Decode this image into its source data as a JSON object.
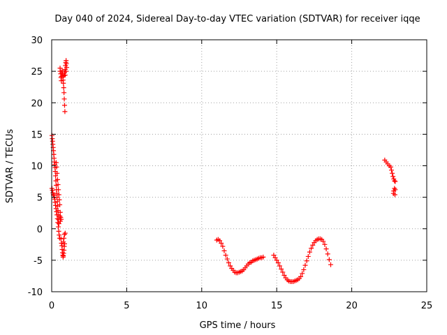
{
  "chart_data": {
    "type": "scatter",
    "title": "Day 040 of 2024, Sidereal Day-to-day VTEC variation (SDTVAR) for receiver iqqe",
    "xlabel": "GPS time / hours",
    "ylabel": "SDTVAR / TECUs",
    "xlim": [
      0,
      25
    ],
    "ylim": [
      -10,
      30
    ],
    "xticks": [
      0,
      5,
      10,
      15,
      20,
      25
    ],
    "yticks": [
      -10,
      -5,
      0,
      5,
      10,
      15,
      20,
      25,
      30
    ],
    "grid": true,
    "marker": "plus",
    "color": "#ff0000",
    "series": [
      {
        "name": "SDTVAR",
        "points": [
          [
            0.02,
            14.8
          ],
          [
            0.04,
            14.3
          ],
          [
            0.06,
            13.9
          ],
          [
            0.08,
            13.4
          ],
          [
            0.1,
            12.9
          ],
          [
            0.12,
            12.4
          ],
          [
            0.14,
            11.8
          ],
          [
            0.16,
            11.2
          ],
          [
            0.18,
            10.6
          ],
          [
            0.2,
            10.2
          ],
          [
            0.22,
            9.7
          ],
          [
            0.24,
            9.1
          ],
          [
            0.26,
            8.4
          ],
          [
            0.28,
            7.6
          ],
          [
            0.3,
            6.9
          ],
          [
            0.32,
            6.2
          ],
          [
            0.34,
            5.6
          ],
          [
            0.36,
            5.0
          ],
          [
            0.38,
            4.3
          ],
          [
            0.4,
            3.6
          ],
          [
            0.42,
            2.9
          ],
          [
            0.44,
            2.2
          ],
          [
            0.46,
            1.5
          ],
          [
            0.48,
            0.8
          ],
          [
            0.02,
            6.4
          ],
          [
            0.05,
            6.1
          ],
          [
            0.08,
            5.7
          ],
          [
            0.11,
            5.4
          ],
          [
            0.14,
            5.3
          ],
          [
            0.17,
            5.0
          ],
          [
            0.2,
            4.7
          ],
          [
            0.23,
            4.2
          ],
          [
            0.26,
            3.7
          ],
          [
            0.29,
            3.2
          ],
          [
            0.32,
            2.7
          ],
          [
            0.35,
            2.2
          ],
          [
            0.38,
            1.6
          ],
          [
            0.41,
            1.0
          ],
          [
            0.44,
            0.3
          ],
          [
            0.47,
            -0.4
          ],
          [
            0.5,
            -1.0
          ],
          [
            0.53,
            -1.5
          ],
          [
            0.3,
            10.5
          ],
          [
            0.33,
            9.8
          ],
          [
            0.36,
            8.8
          ],
          [
            0.39,
            7.8
          ],
          [
            0.42,
            7.0
          ],
          [
            0.45,
            6.2
          ],
          [
            0.48,
            5.4
          ],
          [
            0.51,
            4.6
          ],
          [
            0.54,
            3.8
          ],
          [
            0.57,
            2.6
          ],
          [
            0.6,
            1.8
          ],
          [
            0.63,
            1.5
          ],
          [
            0.55,
            2.0
          ],
          [
            0.58,
            1.2
          ],
          [
            0.62,
            -1.6
          ],
          [
            0.65,
            -2.3
          ],
          [
            0.68,
            -2.7
          ],
          [
            0.7,
            -3.3
          ],
          [
            0.72,
            -3.8
          ],
          [
            0.74,
            -4.2
          ],
          [
            0.76,
            -4.5
          ],
          [
            0.78,
            -4.3
          ],
          [
            0.8,
            -3.9
          ],
          [
            0.82,
            -3.4
          ],
          [
            0.84,
            -2.8
          ],
          [
            0.86,
            -2.4
          ],
          [
            0.78,
            -2.1
          ],
          [
            0.82,
            -1.5
          ],
          [
            0.86,
            -0.9
          ],
          [
            0.9,
            -0.7
          ],
          [
            0.56,
            25.5
          ],
          [
            0.58,
            25.0
          ],
          [
            0.6,
            24.6
          ],
          [
            0.62,
            24.0
          ],
          [
            0.64,
            23.5
          ],
          [
            0.66,
            24.2
          ],
          [
            0.68,
            24.8
          ],
          [
            0.7,
            25.1
          ],
          [
            0.72,
            24.6
          ],
          [
            0.74,
            24.2
          ],
          [
            0.76,
            23.6
          ],
          [
            0.78,
            23.1
          ],
          [
            0.8,
            22.4
          ],
          [
            0.82,
            21.6
          ],
          [
            0.84,
            20.6
          ],
          [
            0.86,
            19.6
          ],
          [
            0.88,
            18.6
          ],
          [
            0.82,
            24.3
          ],
          [
            0.86,
            24.8
          ],
          [
            0.9,
            25.3
          ],
          [
            0.92,
            25.9
          ],
          [
            0.94,
            26.4
          ],
          [
            0.96,
            26.7
          ],
          [
            0.98,
            26.2
          ],
          [
            1.0,
            25.6
          ],
          [
            0.95,
            25.0
          ],
          [
            0.9,
            24.4
          ],
          [
            11.0,
            -1.8
          ],
          [
            11.1,
            -1.7
          ],
          [
            11.2,
            -1.9
          ],
          [
            11.3,
            -2.3
          ],
          [
            11.4,
            -2.8
          ],
          [
            11.5,
            -3.5
          ],
          [
            11.6,
            -4.2
          ],
          [
            11.7,
            -4.8
          ],
          [
            11.8,
            -5.4
          ],
          [
            11.9,
            -5.9
          ],
          [
            12.0,
            -6.3
          ],
          [
            12.1,
            -6.6
          ],
          [
            12.2,
            -6.9
          ],
          [
            12.3,
            -7.0
          ],
          [
            12.4,
            -7.0
          ],
          [
            12.5,
            -6.9
          ],
          [
            12.6,
            -6.8
          ],
          [
            12.7,
            -6.7
          ],
          [
            12.8,
            -6.5
          ],
          [
            12.9,
            -6.2
          ],
          [
            13.0,
            -5.9
          ],
          [
            13.1,
            -5.6
          ],
          [
            13.2,
            -5.4
          ],
          [
            13.3,
            -5.3
          ],
          [
            13.4,
            -5.1
          ],
          [
            13.5,
            -5.0
          ],
          [
            13.6,
            -4.9
          ],
          [
            13.7,
            -4.8
          ],
          [
            13.8,
            -4.7
          ],
          [
            13.9,
            -4.6
          ],
          [
            14.0,
            -4.6
          ],
          [
            14.1,
            -4.5
          ],
          [
            14.8,
            -4.2
          ],
          [
            14.9,
            -4.6
          ],
          [
            15.0,
            -5.0
          ],
          [
            15.1,
            -5.4
          ],
          [
            15.2,
            -5.9
          ],
          [
            15.3,
            -6.4
          ],
          [
            15.4,
            -6.9
          ],
          [
            15.5,
            -7.4
          ],
          [
            15.6,
            -7.8
          ],
          [
            15.7,
            -8.1
          ],
          [
            15.8,
            -8.3
          ],
          [
            15.9,
            -8.4
          ],
          [
            16.0,
            -8.4
          ],
          [
            16.1,
            -8.4
          ],
          [
            16.2,
            -8.3
          ],
          [
            16.3,
            -8.2
          ],
          [
            16.4,
            -8.1
          ],
          [
            16.5,
            -7.9
          ],
          [
            16.6,
            -7.6
          ],
          [
            16.7,
            -7.1
          ],
          [
            16.8,
            -6.5
          ],
          [
            16.9,
            -5.8
          ],
          [
            17.0,
            -5.1
          ],
          [
            17.1,
            -4.4
          ],
          [
            17.2,
            -3.7
          ],
          [
            17.3,
            -3.1
          ],
          [
            17.4,
            -2.6
          ],
          [
            17.5,
            -2.2
          ],
          [
            17.6,
            -1.9
          ],
          [
            17.7,
            -1.7
          ],
          [
            17.8,
            -1.6
          ],
          [
            17.9,
            -1.6
          ],
          [
            18.0,
            -1.7
          ],
          [
            18.1,
            -2.0
          ],
          [
            18.2,
            -2.5
          ],
          [
            18.3,
            -3.2
          ],
          [
            18.4,
            -4.0
          ],
          [
            18.5,
            -4.9
          ],
          [
            18.6,
            -5.7
          ],
          [
            22.2,
            10.9
          ],
          [
            22.3,
            10.6
          ],
          [
            22.4,
            10.3
          ],
          [
            22.5,
            10.0
          ],
          [
            22.6,
            9.8
          ],
          [
            22.65,
            9.3
          ],
          [
            22.7,
            8.8
          ],
          [
            22.75,
            8.3
          ],
          [
            22.8,
            7.9
          ],
          [
            22.85,
            7.6
          ],
          [
            22.9,
            7.5
          ],
          [
            22.85,
            6.4
          ],
          [
            22.8,
            6.0
          ],
          [
            22.78,
            5.6
          ],
          [
            22.88,
            5.4
          ],
          [
            22.9,
            6.2
          ]
        ]
      }
    ]
  }
}
